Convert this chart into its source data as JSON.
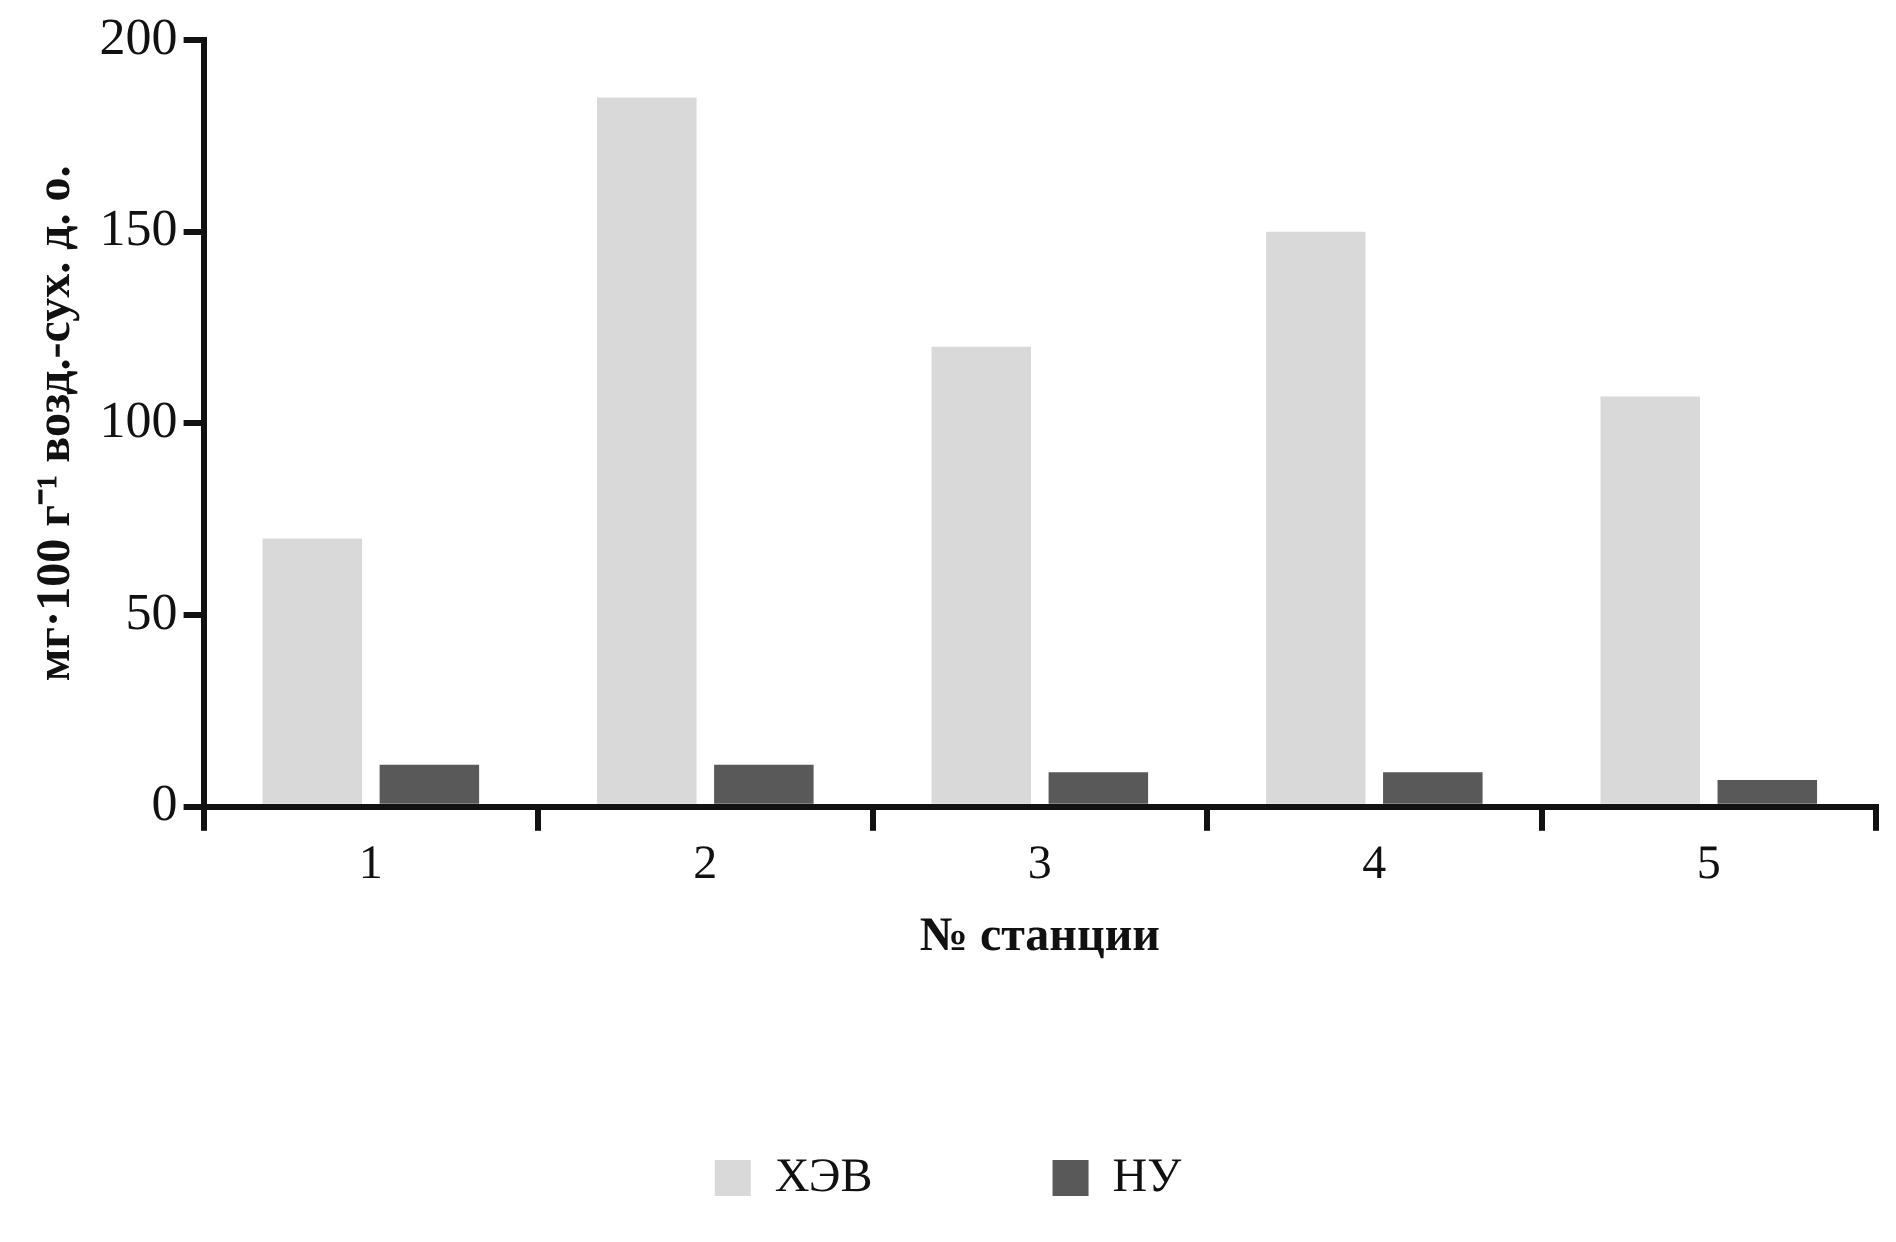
{
  "chart_data": {
    "type": "bar",
    "xlabel": "№ станции",
    "ylabel": "мг·100 г⁻¹ возд.-сух. д. о.",
    "categories": [
      "1",
      "2",
      "3",
      "4",
      "5"
    ],
    "series": [
      {
        "name": "ХЭВ",
        "color": "#d9d9d9",
        "values": [
          70,
          185,
          120,
          150,
          107
        ]
      },
      {
        "name": "НУ",
        "color": "#595959",
        "values": [
          11,
          11,
          9,
          9,
          7
        ]
      }
    ],
    "ylim": [
      0,
      200
    ],
    "yticks": [
      0,
      50,
      100,
      150,
      200
    ],
    "grid": false,
    "legend": "bottom"
  }
}
